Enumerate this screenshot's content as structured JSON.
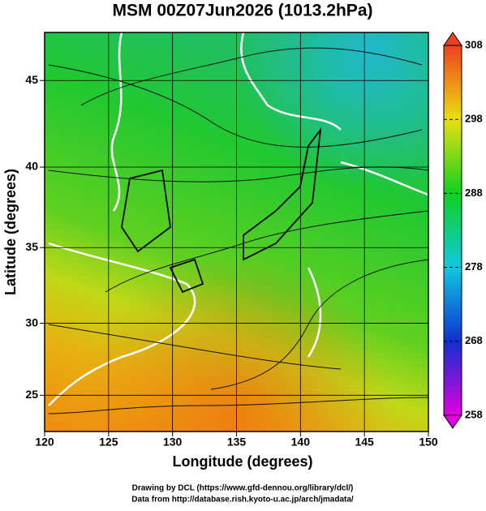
{
  "chart_data": {
    "type": "map",
    "title": "MSM 00Z07Jun2026 (1013.2hPa)",
    "xlabel": "Longitude (degrees)",
    "ylabel": "Latitude  (degrees)",
    "projection": "mercator",
    "xlim": [
      120,
      150
    ],
    "xticks": [
      120,
      125,
      130,
      135,
      140,
      145,
      150
    ],
    "ylim": [
      22.4,
      47.6
    ],
    "yticks": [
      25,
      30,
      35,
      40,
      45
    ],
    "grid": true,
    "colorbar": {
      "lim": [
        258,
        308
      ],
      "ticks": [
        258,
        268,
        278,
        288,
        298,
        308
      ],
      "colors": [
        "#e000e0",
        "#1030d0",
        "#10c8e0",
        "#10d020",
        "#e8e010",
        "#f04020"
      ]
    }
  },
  "credits": [
    "Drawing by DCL (https://www.gfd-dennou.org/library/dcl/)",
    "Data from http://database.rish.kyoto-u.ac.jp/arch/jmadata/"
  ]
}
